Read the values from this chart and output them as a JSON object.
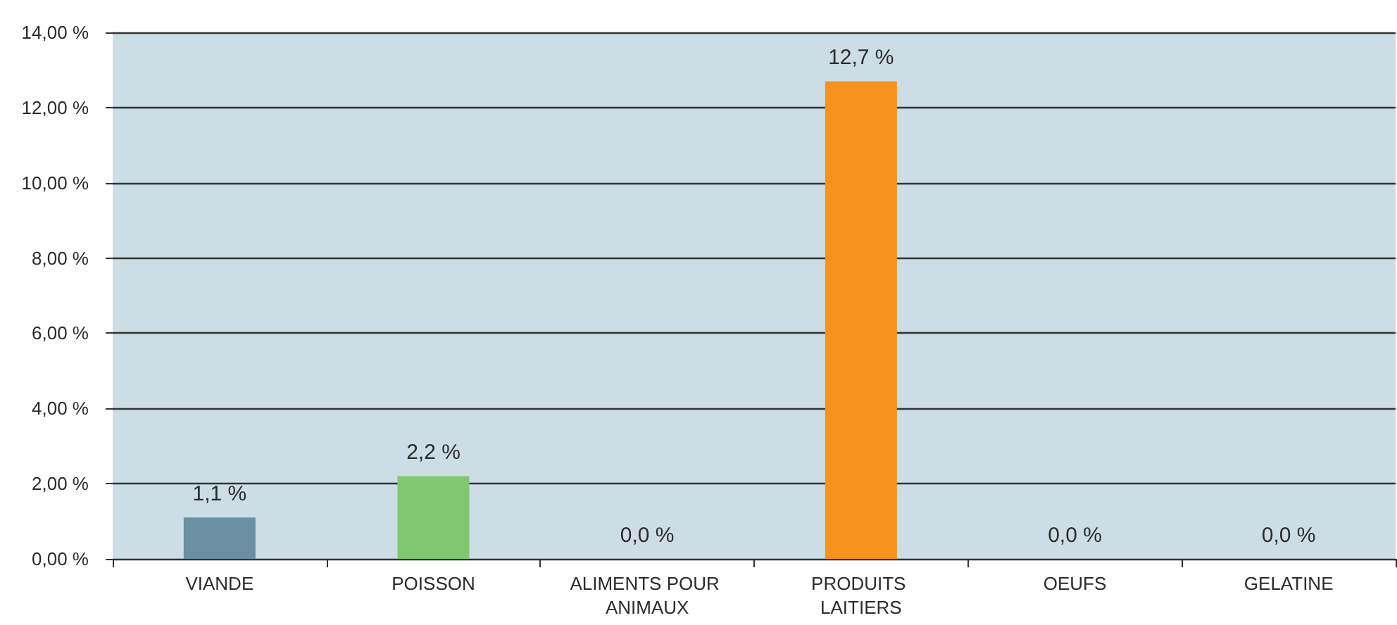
{
  "chart_data": {
    "type": "bar",
    "categories": [
      "VIANDE",
      "POISSON",
      "ALIMENTS POUR ANIMAUX",
      "PRODUITS LAITIERS",
      "OEUFS",
      "GELATINE"
    ],
    "values": [
      1.1,
      2.2,
      0.0,
      12.7,
      0.0,
      0.0
    ],
    "colors": [
      "#6b8fa3",
      "#82c672",
      null,
      "#f5921e",
      null,
      null
    ],
    "value_labels": [
      "1,1 %",
      "2,2 %",
      "0,0 %",
      "12,7 %",
      "0,0 %",
      "0,0 %"
    ],
    "ylim": [
      0,
      14
    ],
    "yticks": [
      {
        "value": 0,
        "label": "0,00 %"
      },
      {
        "value": 2,
        "label": "2,00 %"
      },
      {
        "value": 4,
        "label": "4,00 %"
      },
      {
        "value": 6,
        "label": "6,00 %"
      },
      {
        "value": 8,
        "label": "8,00 %"
      },
      {
        "value": 10,
        "label": "10,00 %"
      },
      {
        "value": 12,
        "label": "12,00 %"
      },
      {
        "value": 14,
        "label": "14,00 %"
      }
    ],
    "grid": "y"
  }
}
